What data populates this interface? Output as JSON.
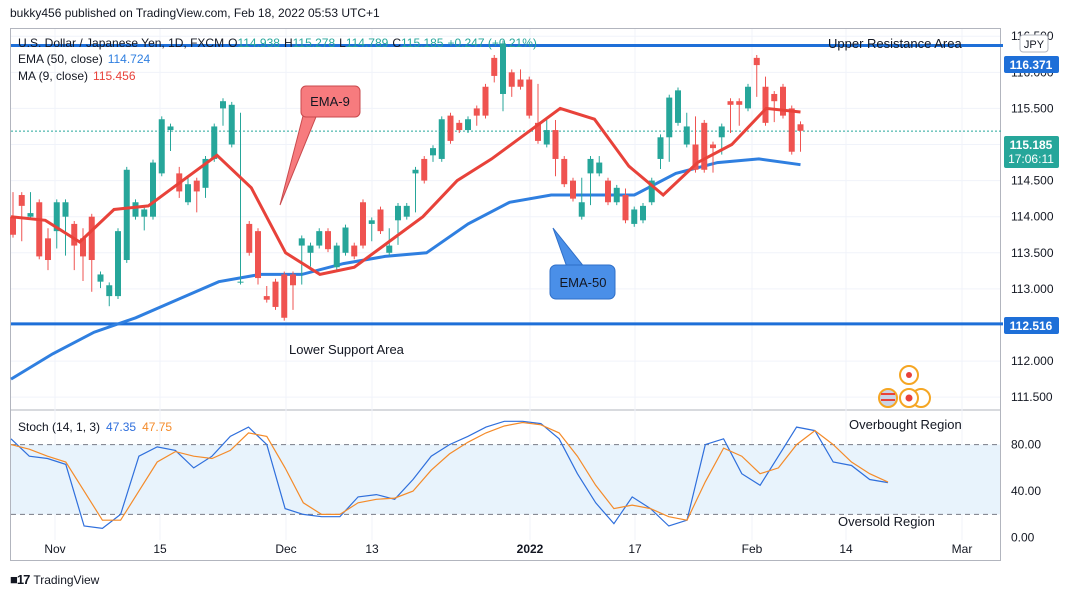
{
  "header": {
    "published": "bukky456 published on TradingView.com, Feb 18, 2022 05:53 UTC+1"
  },
  "legend": {
    "symbol": "U.S. Dollar / Japanese Yen, 1D, FXCM",
    "o_label": "O",
    "o": "114.938",
    "h_label": "H",
    "h": "115.278",
    "l_label": "L",
    "l": "114.789",
    "c_label": "C",
    "c": "115.185",
    "change": "+0.247 (+0.21%)",
    "ema_label": "EMA (50, close)",
    "ema_value": "114.724",
    "ma_label": "MA (9, close)",
    "ma_value": "115.456"
  },
  "stoch_legend": {
    "label": "Stoch (14, 1, 3)",
    "k": "47.35",
    "d": "47.75"
  },
  "currency": "JPY",
  "price_tag": {
    "price": "115.185",
    "countdown": "17:06:11"
  },
  "annotations": {
    "upper": "Upper Resistance Area",
    "lower": "Lower Support Area",
    "ema9": "EMA-9",
    "ema50": "EMA-50",
    "overbought": "Overbought Region",
    "oversold": "Oversold Region"
  },
  "footer": {
    "brand": "TradingView"
  },
  "colors": {
    "up": "#26a69a",
    "down": "#ef5350",
    "ema50": "#2f7fe0",
    "ma9": "#e8423a",
    "stoch_k": "#2f6fdc",
    "stoch_d": "#f48b2a",
    "level": "#1e6fd8"
  },
  "chart_data": [
    {
      "type": "candlestick",
      "title": "U.S. Dollar / Japanese Yen, 1D, FXCM",
      "x_tick_labels": [
        "Nov",
        "15",
        "Dec",
        "13",
        "2022",
        "17",
        "Feb",
        "14",
        "Mar"
      ],
      "y_ticks": [
        111.5,
        112.0,
        112.5,
        113.0,
        113.5,
        114.0,
        114.5,
        115.0,
        115.5,
        116.0,
        116.5
      ],
      "y_tick_labels": [
        "111.500",
        "112.000",
        "112.500",
        "113.000",
        "113.500",
        "114.000",
        "114.500",
        "115.000",
        "115.500",
        "116.000",
        "116.500"
      ],
      "ylim": [
        111.35,
        116.6
      ],
      "resistance": 116.371,
      "support": 112.516,
      "last_close": 115.185,
      "candles": [
        [
          114.0,
          114.3,
          113.8,
          113.75
        ],
        [
          114.3,
          114.1,
          113.7,
          114.15
        ],
        [
          114.0,
          114.3,
          114.1,
          114.05
        ],
        [
          114.2,
          114.2,
          113.65,
          113.45
        ],
        [
          113.7,
          113.8,
          113.3,
          113.4
        ],
        [
          113.8,
          114.0,
          113.6,
          114.2
        ],
        [
          114.0,
          113.9,
          113.5,
          114.2
        ],
        [
          113.9,
          113.9,
          113.3,
          113.6
        ],
        [
          113.7,
          113.8,
          113.15,
          113.45
        ],
        [
          114.0,
          113.95,
          113.0,
          113.4
        ],
        [
          113.1,
          113.1,
          113.05,
          113.2
        ],
        [
          112.9,
          112.9,
          112.8,
          113.05
        ],
        [
          112.9,
          113.05,
          113.5,
          113.8
        ],
        [
          113.4,
          113.8,
          114.4,
          114.65
        ],
        [
          114.0,
          114.1,
          114.0,
          114.2
        ],
        [
          114.0,
          113.85,
          113.85,
          114.1
        ],
        [
          114.0,
          114.4,
          114.55,
          114.75
        ],
        [
          114.6,
          114.85,
          115.3,
          115.35
        ],
        [
          115.2,
          114.95,
          115.05,
          115.25
        ],
        [
          114.6,
          114.65,
          114.3,
          114.35
        ],
        [
          114.2,
          114.45,
          114.5,
          114.45
        ],
        [
          114.5,
          114.35,
          114.1,
          114.35
        ],
        [
          114.4,
          114.4,
          114.3,
          114.8
        ],
        [
          114.8,
          114.8,
          115.2,
          115.25
        ],
        [
          115.5,
          115.3,
          115.5,
          115.6
        ],
        [
          115.0,
          115.0,
          115.5,
          115.55
        ],
        [
          113.1,
          115.4,
          113.2,
          113.1
        ],
        [
          113.9,
          113.9,
          113.5,
          113.5
        ],
        [
          113.8,
          113.3,
          113.1,
          113.15
        ],
        [
          112.9,
          113.0,
          112.85,
          112.85
        ],
        [
          113.1,
          113.05,
          112.85,
          112.75
        ],
        [
          113.2,
          113.2,
          112.75,
          112.6
        ],
        [
          113.2,
          112.75,
          113.1,
          113.05
        ],
        [
          113.6,
          113.1,
          113.6,
          113.7
        ],
        [
          113.5,
          113.35,
          113.5,
          113.6
        ],
        [
          113.6,
          113.65,
          113.7,
          113.8
        ],
        [
          113.8,
          113.75,
          113.6,
          113.55
        ],
        [
          113.3,
          113.6,
          113.6,
          113.6
        ],
        [
          113.5,
          113.65,
          113.8,
          113.85
        ],
        [
          113.6,
          113.6,
          113.55,
          113.45
        ],
        [
          114.2,
          114.15,
          113.7,
          113.6
        ],
        [
          113.9,
          113.7,
          113.95,
          113.95
        ],
        [
          114.1,
          114.0,
          113.85,
          113.8
        ],
        [
          113.5,
          113.8,
          113.6,
          113.6
        ],
        [
          113.95,
          113.65,
          114.1,
          114.15
        ],
        [
          114.0,
          114.1,
          114.0,
          114.15
        ],
        [
          114.6,
          114.1,
          114.6,
          114.65
        ],
        [
          114.8,
          114.8,
          114.6,
          114.5
        ],
        [
          114.85,
          114.8,
          114.85,
          114.95
        ],
        [
          114.8,
          114.8,
          115.3,
          115.35
        ],
        [
          115.4,
          115.3,
          115.15,
          115.05
        ],
        [
          115.3,
          115.2,
          115.2,
          115.2
        ],
        [
          115.2,
          115.2,
          115.3,
          115.35
        ],
        [
          115.5,
          115.3,
          115.35,
          115.4
        ],
        [
          115.8,
          115.7,
          115.5,
          115.4
        ],
        [
          116.2,
          115.9,
          116.0,
          115.95
        ],
        [
          115.7,
          115.5,
          116.3,
          116.4
        ],
        [
          116.0,
          115.9,
          115.7,
          115.8
        ],
        [
          115.9,
          116.0,
          115.8,
          115.8
        ],
        [
          115.9,
          115.7,
          115.5,
          115.4
        ],
        [
          115.3,
          115.8,
          115.2,
          115.05
        ],
        [
          115.0,
          115.3,
          115.3,
          115.2
        ],
        [
          115.2,
          115.3,
          114.6,
          114.8
        ],
        [
          114.8,
          114.8,
          114.5,
          114.45
        ],
        [
          114.5,
          114.5,
          114.3,
          114.25
        ],
        [
          114.0,
          114.5,
          114.25,
          114.2
        ],
        [
          114.6,
          114.2,
          114.6,
          114.8
        ],
        [
          114.6,
          114.8,
          114.7,
          114.75
        ],
        [
          114.5,
          114.5,
          114.35,
          114.2
        ],
        [
          114.2,
          114.2,
          114.3,
          114.4
        ],
        [
          114.3,
          114.35,
          113.95,
          113.95
        ],
        [
          113.9,
          113.95,
          114.0,
          114.1
        ],
        [
          113.95,
          114.1,
          114.0,
          114.15
        ],
        [
          114.2,
          114.2,
          114.4,
          114.5
        ],
        [
          114.8,
          114.7,
          114.8,
          115.1
        ],
        [
          115.1,
          114.8,
          115.4,
          115.65
        ],
        [
          115.3,
          115.3,
          115.5,
          115.75
        ],
        [
          115.0,
          115.4,
          115.35,
          115.25
        ],
        [
          115.0,
          115.35,
          114.75,
          114.65
        ],
        [
          115.3,
          115.0,
          114.75,
          114.65
        ],
        [
          115.0,
          114.65,
          114.9,
          114.95
        ],
        [
          115.1,
          114.9,
          115.2,
          115.25
        ],
        [
          115.6,
          115.2,
          115.45,
          115.55
        ],
        [
          115.6,
          115.3,
          115.5,
          115.55
        ],
        [
          115.5,
          115.55,
          115.8,
          115.8
        ],
        [
          116.2,
          115.7,
          116.0,
          116.1
        ],
        [
          115.8,
          115.9,
          115.5,
          115.3
        ],
        [
          115.7,
          115.35,
          115.6,
          115.6
        ],
        [
          115.8,
          115.55,
          115.45,
          115.4
        ],
        [
          115.5,
          115.3,
          114.94,
          114.9
        ],
        [
          115.28,
          114.94,
          115.19,
          115.19
        ]
      ],
      "series": [
        {
          "name": "EMA (50, close)",
          "values": [
            111.75,
            112.1,
            112.4,
            112.6,
            112.85,
            113.1,
            113.2,
            113.2,
            113.35,
            113.45,
            113.5,
            113.9,
            114.2,
            114.3,
            114.3,
            114.3,
            114.6,
            114.75,
            114.8,
            114.72
          ]
        },
        {
          "name": "MA (9, close)",
          "values": [
            114.0,
            113.95,
            113.65,
            114.1,
            114.15,
            114.5,
            114.85,
            114.4,
            113.5,
            113.2,
            113.3,
            113.65,
            114.0,
            114.5,
            114.8,
            115.15,
            115.5,
            115.35,
            114.7,
            114.3,
            114.75,
            115.0,
            115.5,
            115.45
          ]
        }
      ]
    },
    {
      "type": "line",
      "title": "Stoch (14, 1, 3)",
      "y_ticks": [
        0,
        40,
        80
      ],
      "y_tick_labels": [
        "0.00",
        "40.00",
        "80.00"
      ],
      "levels": [
        20,
        80
      ],
      "ylim": [
        -2,
        108
      ],
      "series": [
        {
          "name": "%K",
          "values": [
            85,
            70,
            68,
            63,
            10,
            8,
            20,
            70,
            78,
            75,
            60,
            70,
            87,
            95,
            80,
            25,
            20,
            18,
            18,
            35,
            37,
            33,
            50,
            70,
            80,
            87,
            95,
            100,
            100,
            98,
            85,
            55,
            30,
            12,
            35,
            25,
            10,
            15,
            80,
            85,
            55,
            45,
            70,
            95,
            92,
            65,
            62,
            50,
            47.35
          ]
        },
        {
          "name": "%D",
          "values": [
            80,
            76,
            70,
            65,
            40,
            15,
            15,
            40,
            65,
            74,
            70,
            68,
            75,
            90,
            87,
            60,
            30,
            20,
            20,
            30,
            33,
            34,
            40,
            58,
            72,
            82,
            90,
            96,
            99,
            97,
            90,
            70,
            45,
            25,
            28,
            25,
            18,
            15,
            48,
            77,
            70,
            55,
            60,
            80,
            92,
            80,
            65,
            55,
            47.75
          ]
        }
      ]
    }
  ]
}
